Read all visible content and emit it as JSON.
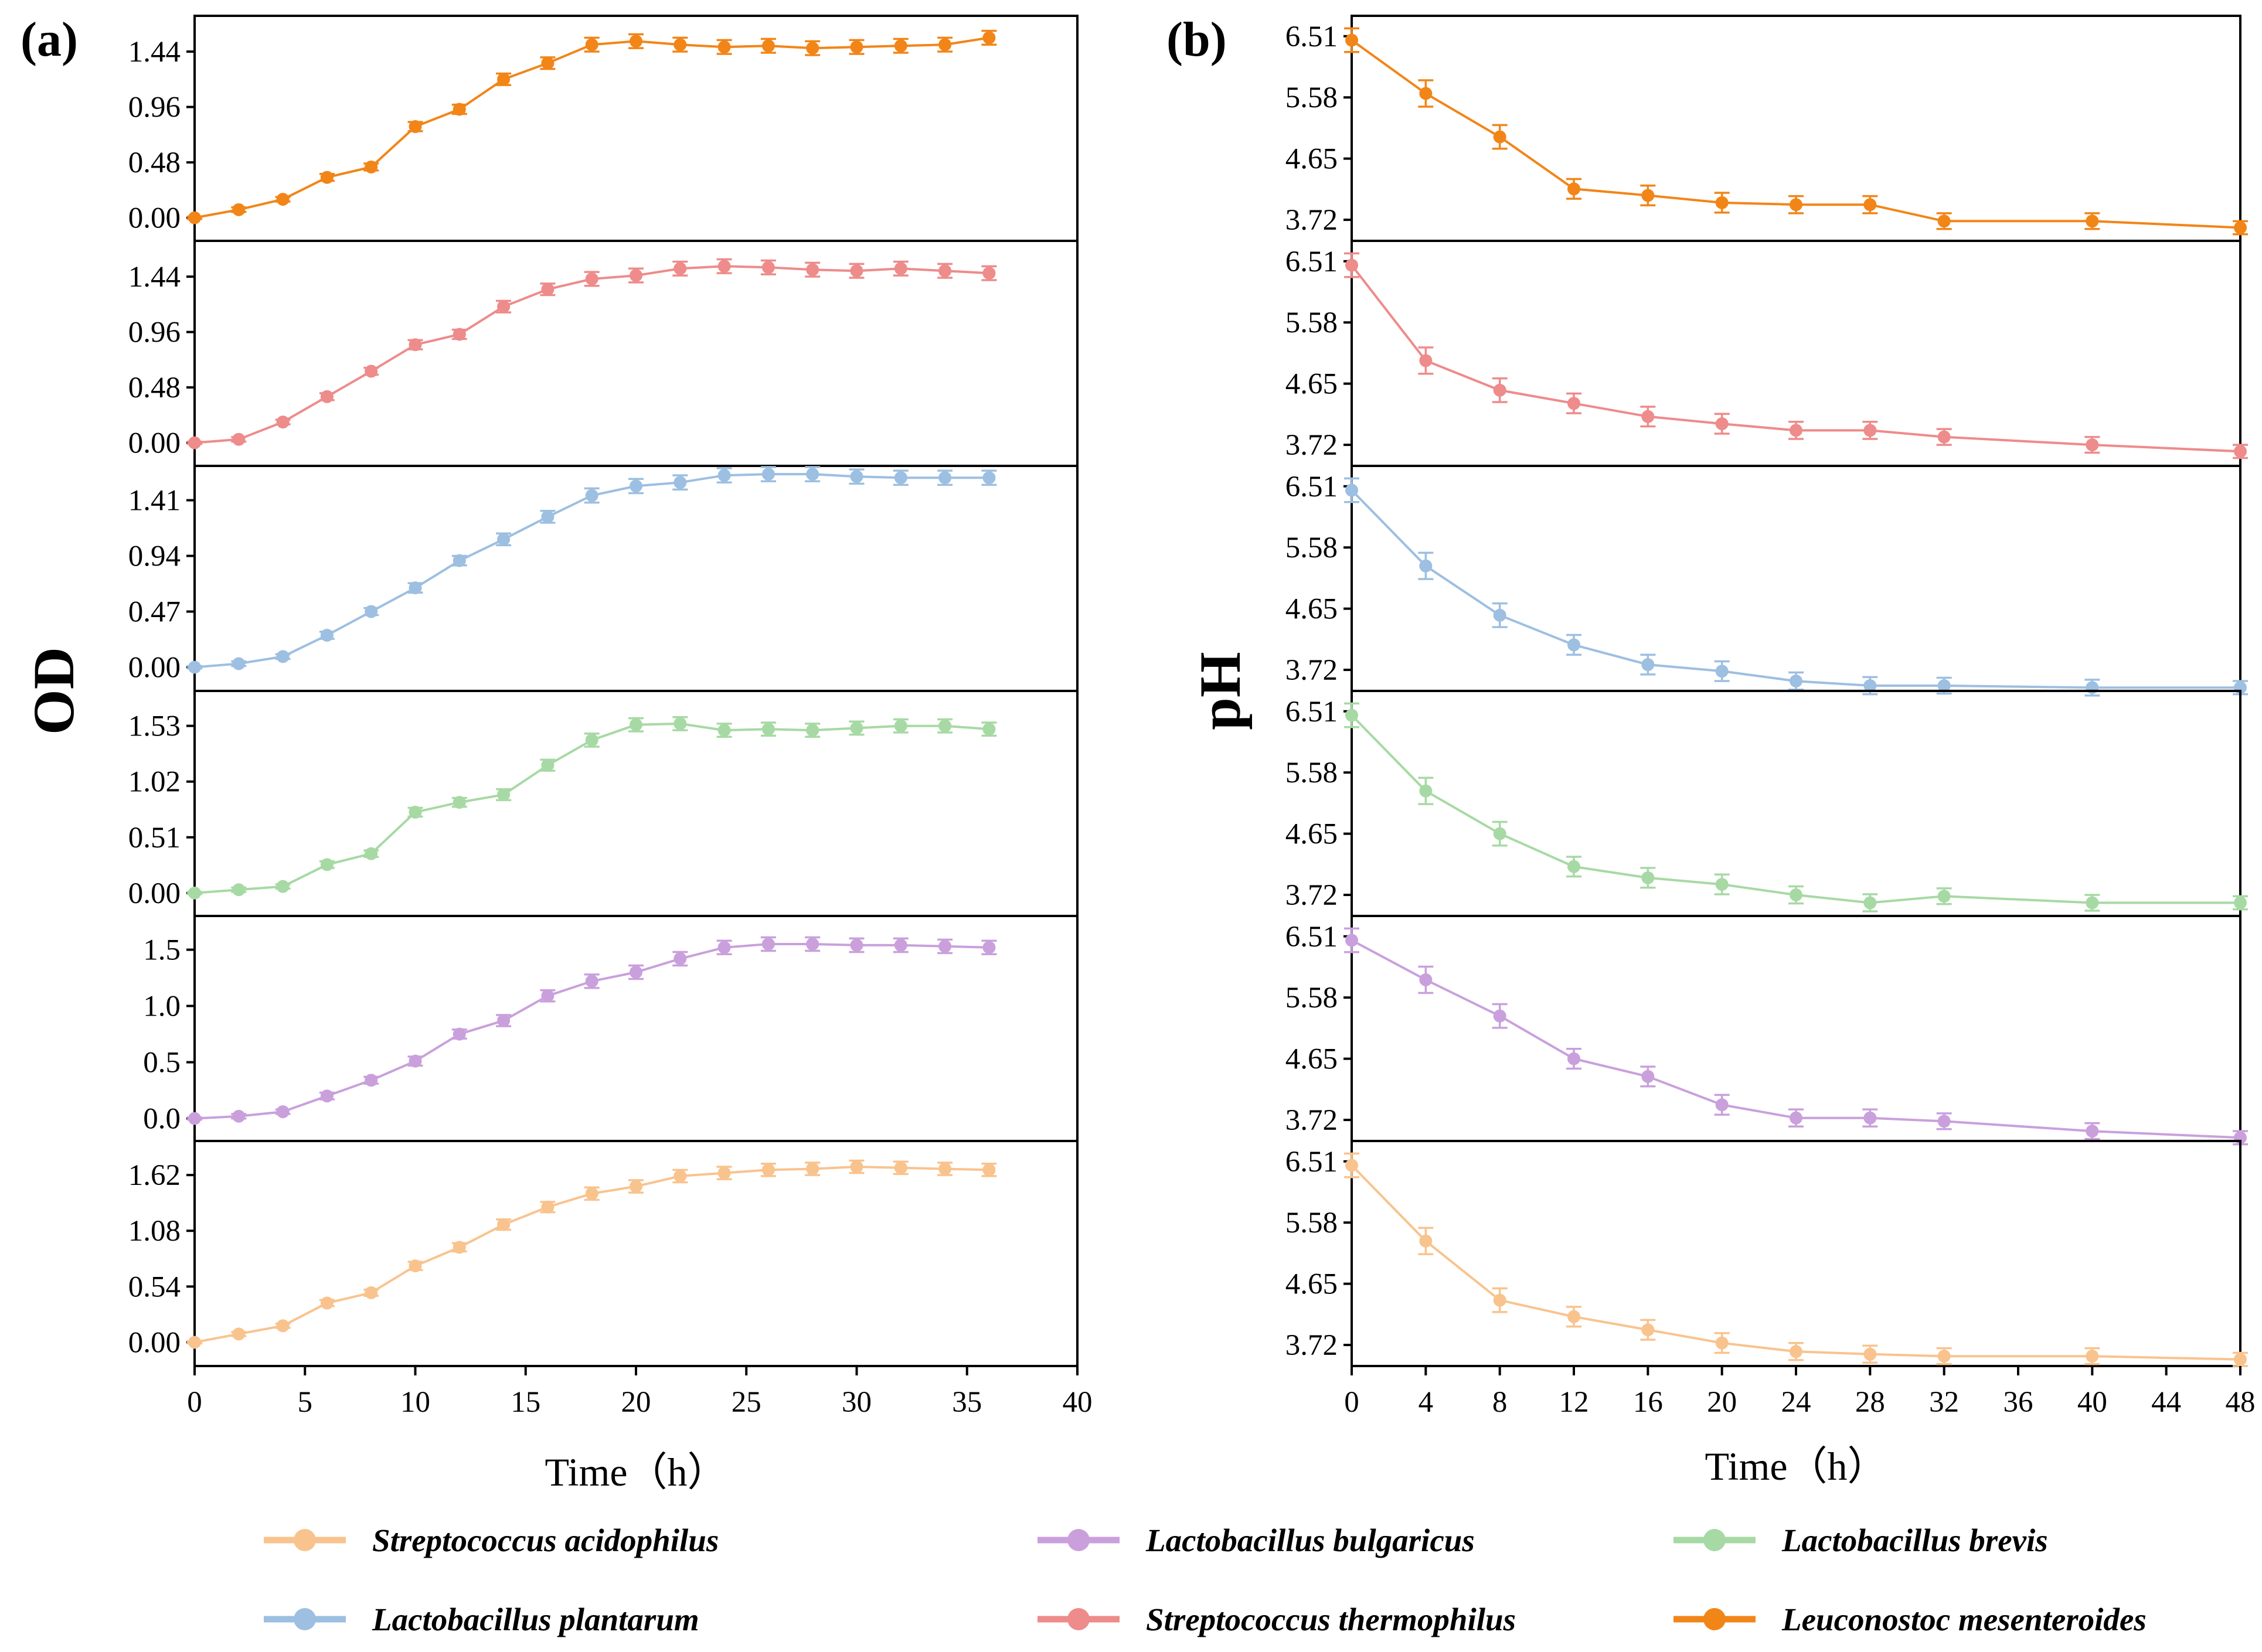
{
  "chart_data": [
    {
      "type": "line",
      "panel_label": "(a)",
      "ylabel": "OD",
      "xlabel": "Time（h）",
      "xlim": [
        0,
        40
      ],
      "xticks": [
        "0",
        "5",
        "10",
        "15",
        "20",
        "25",
        "30",
        "35",
        "40"
      ],
      "x": [
        0,
        2,
        4,
        6,
        8,
        10,
        12,
        14,
        16,
        18,
        20,
        22,
        24,
        26,
        28,
        30,
        32,
        34,
        36
      ],
      "subplots": [
        {
          "series": "Leuconostoc mesenteroides",
          "color": "#F28518",
          "ylim": [
            -0.2,
            1.75
          ],
          "yticks": [
            "0.00",
            "0.48",
            "0.96",
            "1.44"
          ],
          "values": [
            0.0,
            0.07,
            0.16,
            0.35,
            0.44,
            0.79,
            0.94,
            1.2,
            1.34,
            1.5,
            1.53,
            1.5,
            1.48,
            1.49,
            1.47,
            1.48,
            1.49,
            1.5,
            1.56
          ],
          "error": [
            0.01,
            0.02,
            0.02,
            0.03,
            0.03,
            0.04,
            0.04,
            0.05,
            0.05,
            0.06,
            0.06,
            0.06,
            0.06,
            0.06,
            0.06,
            0.06,
            0.06,
            0.06,
            0.06
          ]
        },
        {
          "series": "Streptococcus thermophilus",
          "color": "#EE8B8B",
          "ylim": [
            -0.2,
            1.75
          ],
          "yticks": [
            "0.00",
            "0.48",
            "0.96",
            "1.44"
          ],
          "values": [
            0.0,
            0.03,
            0.18,
            0.4,
            0.62,
            0.85,
            0.94,
            1.18,
            1.33,
            1.42,
            1.45,
            1.51,
            1.53,
            1.52,
            1.5,
            1.49,
            1.51,
            1.49,
            1.47
          ],
          "error": [
            0.01,
            0.02,
            0.02,
            0.03,
            0.03,
            0.04,
            0.04,
            0.05,
            0.05,
            0.06,
            0.06,
            0.06,
            0.06,
            0.06,
            0.06,
            0.06,
            0.06,
            0.06,
            0.06
          ]
        },
        {
          "series": "Lactobacillus plantarum",
          "color": "#9DBFE1",
          "ylim": [
            -0.2,
            1.7
          ],
          "yticks": [
            "0.00",
            "0.47",
            "0.94",
            "1.41"
          ],
          "values": [
            0.0,
            0.03,
            0.09,
            0.27,
            0.47,
            0.67,
            0.9,
            1.08,
            1.27,
            1.45,
            1.53,
            1.56,
            1.62,
            1.63,
            1.63,
            1.61,
            1.6,
            1.6,
            1.6
          ],
          "error": [
            0.01,
            0.02,
            0.02,
            0.03,
            0.03,
            0.04,
            0.04,
            0.05,
            0.05,
            0.06,
            0.06,
            0.06,
            0.06,
            0.06,
            0.06,
            0.06,
            0.06,
            0.06,
            0.06
          ]
        },
        {
          "series": "Lactobacillus brevis",
          "color": "#A7D9A4",
          "ylim": [
            -0.21,
            1.85
          ],
          "yticks": [
            "0.00",
            "0.51",
            "1.02",
            "1.53"
          ],
          "values": [
            0.0,
            0.03,
            0.06,
            0.26,
            0.36,
            0.74,
            0.83,
            0.9,
            1.17,
            1.4,
            1.54,
            1.55,
            1.49,
            1.5,
            1.49,
            1.51,
            1.53,
            1.53,
            1.5
          ],
          "error": [
            0.01,
            0.02,
            0.02,
            0.03,
            0.03,
            0.04,
            0.04,
            0.05,
            0.05,
            0.06,
            0.06,
            0.06,
            0.06,
            0.06,
            0.06,
            0.06,
            0.06,
            0.06,
            0.06
          ]
        },
        {
          "series": "Lactobacillus bulgaricus",
          "color": "#C9A0DC",
          "ylim": [
            -0.2,
            1.8
          ],
          "yticks": [
            "0.0",
            "0.5",
            "1.0",
            "1.5"
          ],
          "values": [
            0.0,
            0.02,
            0.06,
            0.2,
            0.34,
            0.51,
            0.75,
            0.87,
            1.09,
            1.22,
            1.3,
            1.42,
            1.52,
            1.55,
            1.55,
            1.54,
            1.54,
            1.53,
            1.52
          ],
          "error": [
            0.01,
            0.02,
            0.02,
            0.03,
            0.03,
            0.04,
            0.04,
            0.05,
            0.05,
            0.06,
            0.06,
            0.06,
            0.06,
            0.06,
            0.06,
            0.06,
            0.06,
            0.06,
            0.06
          ]
        },
        {
          "series": "Streptococcus acidophilus",
          "color": "#F9C38E",
          "ylim": [
            -0.23,
            1.95
          ],
          "yticks": [
            "0.00",
            "0.54",
            "1.08",
            "1.62"
          ],
          "values": [
            0.0,
            0.08,
            0.16,
            0.38,
            0.48,
            0.74,
            0.92,
            1.14,
            1.31,
            1.44,
            1.51,
            1.61,
            1.64,
            1.67,
            1.68,
            1.7,
            1.69,
            1.68,
            1.67
          ],
          "error": [
            0.01,
            0.02,
            0.02,
            0.03,
            0.03,
            0.04,
            0.04,
            0.05,
            0.05,
            0.06,
            0.06,
            0.06,
            0.06,
            0.06,
            0.06,
            0.06,
            0.06,
            0.06,
            0.06
          ]
        }
      ]
    },
    {
      "type": "line",
      "panel_label": "(b)",
      "ylabel": "pH",
      "xlabel": "Time（h）",
      "xlim": [
        0,
        48
      ],
      "xticks": [
        "0",
        "4",
        "8",
        "12",
        "16",
        "20",
        "24",
        "28",
        "32",
        "36",
        "40",
        "44",
        "48"
      ],
      "x": [
        0,
        4,
        8,
        12,
        16,
        20,
        24,
        28,
        32,
        40,
        48
      ],
      "subplots": [
        {
          "series": "Leuconostoc mesenteroides",
          "color": "#F28518",
          "ylim": [
            3.4,
            6.82
          ],
          "yticks": [
            "3.72",
            "4.65",
            "5.58",
            "6.51"
          ],
          "values": [
            6.45,
            5.64,
            4.98,
            4.19,
            4.09,
            3.98,
            3.95,
            3.95,
            3.7,
            3.7,
            3.6
          ],
          "error": [
            0.18,
            0.2,
            0.18,
            0.15,
            0.15,
            0.15,
            0.13,
            0.13,
            0.12,
            0.12,
            0.1
          ]
        },
        {
          "series": "Streptococcus thermophilus",
          "color": "#EE8B8B",
          "ylim": [
            3.4,
            6.82
          ],
          "yticks": [
            "3.72",
            "4.65",
            "5.58",
            "6.51"
          ],
          "values": [
            6.45,
            5.0,
            4.55,
            4.35,
            4.15,
            4.04,
            3.94,
            3.94,
            3.84,
            3.72,
            3.62
          ],
          "error": [
            0.18,
            0.2,
            0.18,
            0.15,
            0.15,
            0.15,
            0.13,
            0.13,
            0.12,
            0.12,
            0.1
          ]
        },
        {
          "series": "Lactobacillus plantarum",
          "color": "#9DBFE1",
          "ylim": [
            3.4,
            6.82
          ],
          "yticks": [
            "3.72",
            "4.65",
            "5.58",
            "6.51"
          ],
          "values": [
            6.45,
            5.3,
            4.55,
            4.1,
            3.8,
            3.7,
            3.55,
            3.48,
            3.48,
            3.45,
            3.45
          ],
          "error": [
            0.18,
            0.2,
            0.18,
            0.15,
            0.15,
            0.15,
            0.13,
            0.13,
            0.12,
            0.12,
            0.1
          ]
        },
        {
          "series": "Lactobacillus brevis",
          "color": "#A7D9A4",
          "ylim": [
            3.4,
            6.82
          ],
          "yticks": [
            "3.72",
            "4.65",
            "5.58",
            "6.51"
          ],
          "values": [
            6.45,
            5.3,
            4.65,
            4.15,
            3.98,
            3.88,
            3.72,
            3.6,
            3.7,
            3.6,
            3.6
          ],
          "error": [
            0.18,
            0.2,
            0.18,
            0.15,
            0.15,
            0.15,
            0.13,
            0.13,
            0.12,
            0.12,
            0.1
          ]
        },
        {
          "series": "Lactobacillus bulgaricus",
          "color": "#C9A0DC",
          "ylim": [
            3.4,
            6.82
          ],
          "yticks": [
            "3.72",
            "4.65",
            "5.58",
            "6.51"
          ],
          "values": [
            6.45,
            5.85,
            5.3,
            4.65,
            4.38,
            3.95,
            3.75,
            3.75,
            3.7,
            3.55,
            3.45
          ],
          "error": [
            0.18,
            0.2,
            0.18,
            0.15,
            0.15,
            0.15,
            0.13,
            0.13,
            0.12,
            0.12,
            0.1
          ]
        },
        {
          "series": "Streptococcus acidophilus",
          "color": "#F9C38E",
          "ylim": [
            3.4,
            6.82
          ],
          "yticks": [
            "3.72",
            "4.65",
            "5.58",
            "6.51"
          ],
          "values": [
            6.45,
            5.3,
            4.4,
            4.15,
            3.95,
            3.75,
            3.62,
            3.58,
            3.55,
            3.55,
            3.5
          ],
          "error": [
            0.18,
            0.2,
            0.18,
            0.15,
            0.15,
            0.15,
            0.13,
            0.13,
            0.12,
            0.12,
            0.1
          ]
        }
      ]
    }
  ],
  "legend": [
    {
      "label": "Streptococcus acidophilus",
      "color": "#F9C38E"
    },
    {
      "label": "Lactobacillus bulgaricus",
      "color": "#C9A0DC"
    },
    {
      "label": "Lactobacillus brevis",
      "color": "#A7D9A4"
    },
    {
      "label": "Lactobacillus plantarum",
      "color": "#9DBFE1"
    },
    {
      "label": "Streptococcus thermophilus",
      "color": "#EE8B8B"
    },
    {
      "label": "Leuconostoc mesenteroides",
      "color": "#F28518"
    }
  ]
}
